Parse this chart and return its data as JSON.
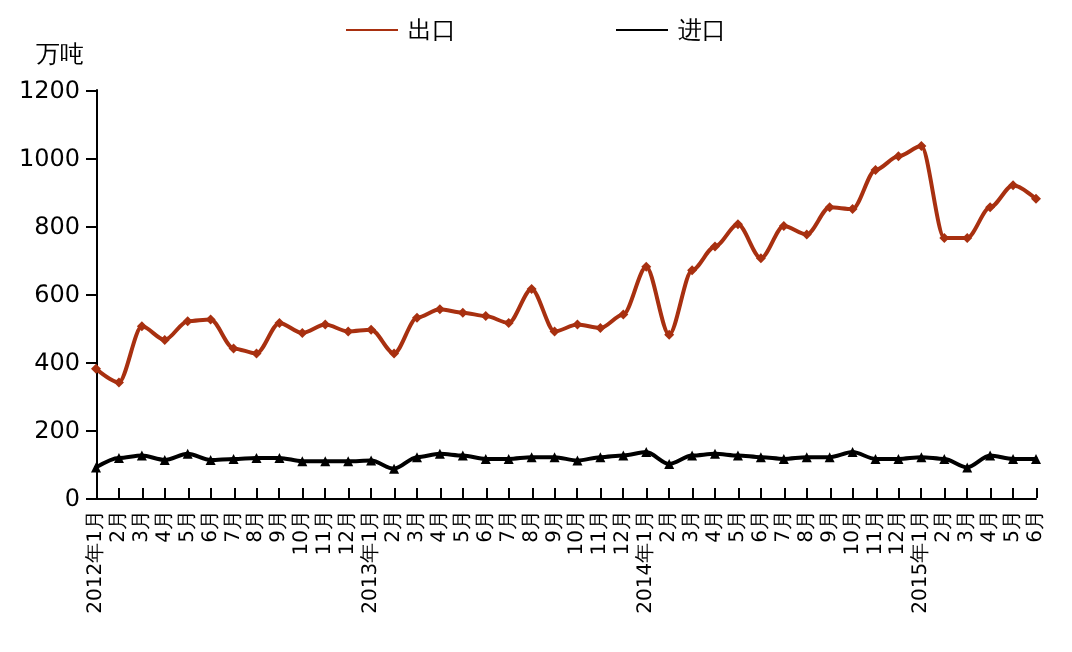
{
  "chart_data": {
    "type": "line",
    "ylabel": "万吨",
    "categories": [
      "2012年1月",
      "2月",
      "3月",
      "4月",
      "5月",
      "6月",
      "7月",
      "8月",
      "9月",
      "10月",
      "11月",
      "12月",
      "2013年1月",
      "2月",
      "3月",
      "4月",
      "5月",
      "6月",
      "7月",
      "8月",
      "9月",
      "10月",
      "11月",
      "12月",
      "2014年1月",
      "2月",
      "3月",
      "4月",
      "5月",
      "6月",
      "7月",
      "8月",
      "9月",
      "10月",
      "11月",
      "12月",
      "2015年1月",
      "2月",
      "3月",
      "4月",
      "5月",
      "6月"
    ],
    "series": [
      {
        "name": "出口",
        "color": "#a83010",
        "marker": "diamond",
        "values": [
          380,
          340,
          505,
          465,
          520,
          525,
          440,
          425,
          515,
          485,
          510,
          490,
          495,
          425,
          530,
          555,
          545,
          535,
          515,
          615,
          490,
          510,
          500,
          540,
          680,
          480,
          670,
          740,
          805,
          705,
          800,
          775,
          855,
          850,
          965,
          1005,
          1035,
          765,
          765,
          855,
          920,
          880
        ]
      },
      {
        "name": "进口",
        "color": "#000000",
        "marker": "triangle",
        "values": [
          90,
          118,
          125,
          112,
          130,
          112,
          115,
          118,
          118,
          108,
          108,
          108,
          110,
          86,
          120,
          130,
          125,
          115,
          115,
          120,
          120,
          110,
          120,
          125,
          135,
          100,
          125,
          130,
          125,
          120,
          115,
          120,
          120,
          135,
          115,
          115,
          120,
          115,
          90,
          125,
          115,
          115
        ]
      }
    ],
    "ylim": [
      0,
      1200
    ],
    "yticks": [
      0,
      200,
      400,
      600,
      800,
      1000,
      1200
    ],
    "grid": false,
    "legend": "top",
    "line_style": "solid"
  }
}
